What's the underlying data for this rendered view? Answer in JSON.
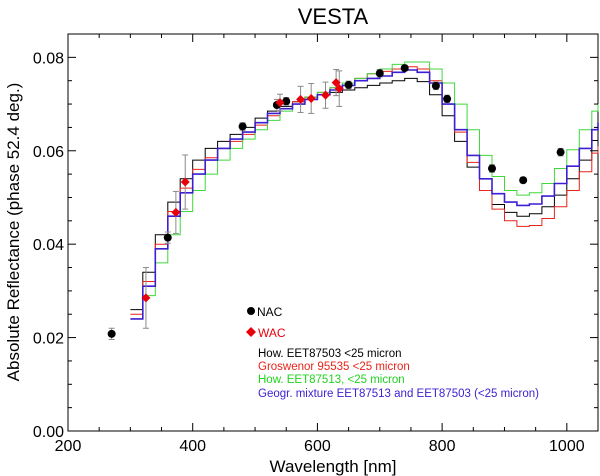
{
  "chart_data": {
    "type": "line",
    "title": "VESTA",
    "xlabel": "Wavelength [nm]",
    "ylabel": "Absolute Reflectance (phase 52.4 deg.)",
    "xlim": [
      200,
      1050
    ],
    "ylim": [
      0,
      0.085
    ],
    "xticks": [
      200,
      400,
      600,
      800,
      1000
    ],
    "yticks": [
      0.0,
      0.02,
      0.04,
      0.06,
      0.08
    ],
    "ytick_labels": [
      "0.00",
      "0.02",
      "0.04",
      "0.06",
      "0.08"
    ],
    "grid": false,
    "legend_position": "bottom-center",
    "series": [
      {
        "name": "How. EET87503 <25 micron",
        "kind": "step",
        "color": "#000000",
        "x": [
          300,
          320,
          340,
          360,
          380,
          400,
          420,
          440,
          460,
          480,
          500,
          520,
          540,
          560,
          580,
          600,
          620,
          640,
          660,
          680,
          700,
          720,
          740,
          760,
          780,
          800,
          820,
          840,
          860,
          880,
          900,
          920,
          940,
          960,
          980,
          1000,
          1020,
          1040,
          1050
        ],
        "values": [
          0.026,
          0.034,
          0.042,
          0.049,
          0.054,
          0.058,
          0.0605,
          0.062,
          0.0635,
          0.065,
          0.067,
          0.0685,
          0.0695,
          0.0705,
          0.0715,
          0.072,
          0.0725,
          0.073,
          0.0735,
          0.074,
          0.0745,
          0.075,
          0.0755,
          0.0748,
          0.072,
          0.0675,
          0.062,
          0.0565,
          0.0515,
          0.0485,
          0.0468,
          0.046,
          0.0465,
          0.048,
          0.0505,
          0.054,
          0.058,
          0.0622,
          0.064
        ]
      },
      {
        "name": "Groswenor 95535 <25 micron",
        "kind": "step",
        "color": "#e8241a",
        "x": [
          300,
          320,
          340,
          360,
          380,
          400,
          420,
          440,
          460,
          480,
          500,
          520,
          540,
          560,
          580,
          600,
          620,
          640,
          660,
          680,
          700,
          720,
          740,
          760,
          780,
          800,
          820,
          840,
          860,
          880,
          900,
          920,
          940,
          960,
          980,
          1000,
          1020,
          1040,
          1050
        ],
        "values": [
          0.025,
          0.032,
          0.04,
          0.047,
          0.052,
          0.056,
          0.0585,
          0.0605,
          0.062,
          0.0635,
          0.0655,
          0.0675,
          0.069,
          0.0705,
          0.0715,
          0.0725,
          0.0735,
          0.0745,
          0.0755,
          0.0765,
          0.077,
          0.0775,
          0.078,
          0.0775,
          0.075,
          0.07,
          0.064,
          0.0575,
          0.0515,
          0.0475,
          0.045,
          0.0438,
          0.044,
          0.0455,
          0.048,
          0.0515,
          0.0555,
          0.0595,
          0.061
        ]
      },
      {
        "name": "How. EET87513, <25 micron",
        "kind": "step",
        "color": "#3fd93c",
        "x": [
          300,
          320,
          340,
          360,
          380,
          400,
          420,
          440,
          460,
          480,
          500,
          520,
          540,
          560,
          580,
          600,
          620,
          640,
          660,
          680,
          700,
          720,
          740,
          760,
          780,
          800,
          820,
          840,
          860,
          880,
          900,
          920,
          940,
          960,
          980,
          1000,
          1020,
          1040,
          1050
        ],
        "values": [
          0.024,
          0.029,
          0.036,
          0.042,
          0.047,
          0.0515,
          0.055,
          0.058,
          0.0605,
          0.0625,
          0.0645,
          0.0665,
          0.0685,
          0.07,
          0.0715,
          0.0725,
          0.0735,
          0.0745,
          0.0755,
          0.0765,
          0.0775,
          0.0785,
          0.079,
          0.079,
          0.0775,
          0.0745,
          0.07,
          0.0645,
          0.059,
          0.0545,
          0.0515,
          0.0505,
          0.051,
          0.053,
          0.0562,
          0.0602,
          0.0645,
          0.0685,
          0.07
        ]
      },
      {
        "name": "Geogr. mixture EET87513 and EET87503 (<25 micron)",
        "kind": "step",
        "color": "#3b1fd1",
        "x": [
          300,
          320,
          340,
          360,
          380,
          400,
          420,
          440,
          460,
          480,
          500,
          520,
          540,
          560,
          580,
          600,
          620,
          640,
          660,
          680,
          700,
          720,
          740,
          760,
          780,
          800,
          820,
          840,
          860,
          880,
          900,
          920,
          940,
          960,
          980,
          1000,
          1020,
          1040,
          1050
        ],
        "values": [
          0.024,
          0.031,
          0.039,
          0.046,
          0.051,
          0.055,
          0.058,
          0.0605,
          0.0625,
          0.064,
          0.066,
          0.068,
          0.069,
          0.07,
          0.071,
          0.072,
          0.073,
          0.074,
          0.075,
          0.0755,
          0.076,
          0.0768,
          0.0773,
          0.0768,
          0.0745,
          0.07,
          0.0645,
          0.059,
          0.054,
          0.0508,
          0.049,
          0.0483,
          0.0486,
          0.0503,
          0.053,
          0.0567,
          0.0605,
          0.0645,
          0.066
        ]
      },
      {
        "name": "NAC",
        "kind": "points",
        "marker": "circle",
        "color": "#000000",
        "x": [
          270,
          360,
          480,
          535,
          550,
          650,
          700,
          740,
          790,
          808,
          880,
          930,
          990
        ],
        "values": [
          0.0208,
          0.0414,
          0.0652,
          0.0698,
          0.0706,
          0.0741,
          0.0766,
          0.0777,
          0.0739,
          0.0711,
          0.0562,
          0.0537,
          0.0597
        ],
        "errors": [
          0.0012,
          0.0012,
          0.0008,
          0.0012,
          0.0008,
          0.0008,
          0.0008,
          0.0006,
          0.0008,
          0.0008,
          0.0008,
          0.0006,
          0.0008
        ]
      },
      {
        "name": "WAC",
        "kind": "points",
        "marker": "diamond",
        "color": "#e8000b",
        "x": [
          325,
          373,
          388,
          540,
          573,
          590,
          613,
          630,
          635
        ],
        "values": [
          0.0285,
          0.0468,
          0.0533,
          0.0703,
          0.071,
          0.0712,
          0.0719,
          0.0746,
          0.0733
        ],
        "errors": [
          0.0065,
          0.0045,
          0.0058,
          0.0018,
          0.0028,
          0.0032,
          0.0028,
          0.0028,
          0.0038
        ]
      }
    ]
  }
}
